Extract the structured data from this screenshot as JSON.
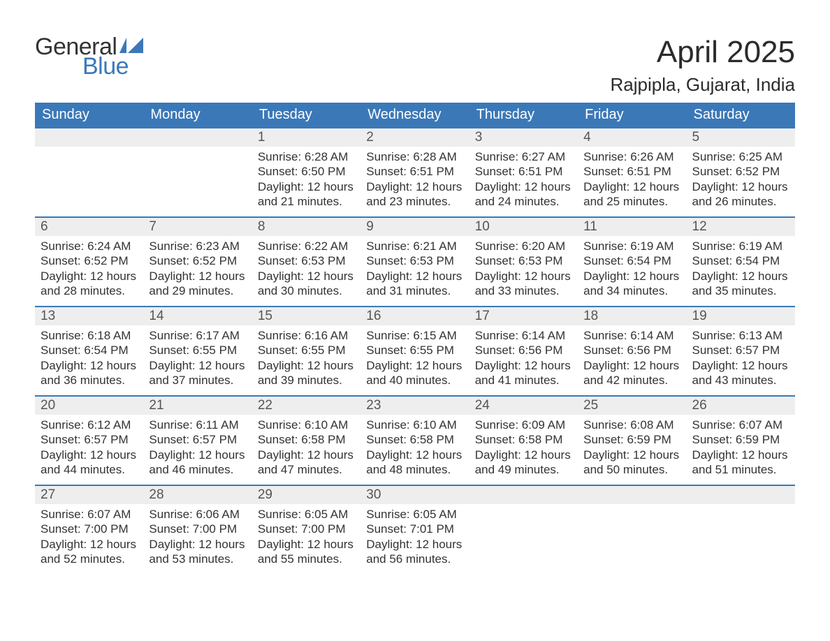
{
  "brand": {
    "general": "General",
    "blue": "Blue",
    "accent_color": "#3b78b8"
  },
  "header": {
    "month_title": "April 2025",
    "location": "Rajpipla, Gujarat, India"
  },
  "day_headers": [
    "Sunday",
    "Monday",
    "Tuesday",
    "Wednesday",
    "Thursday",
    "Friday",
    "Saturday"
  ],
  "labels": {
    "sunrise": "Sunrise:",
    "sunset": "Sunset:",
    "daylight_prefix": "Daylight:",
    "daylight_hours_word": "hours",
    "daylight_and_word": "and",
    "daylight_minutes_word": "minutes."
  },
  "colors": {
    "header_bg": "#3b78b8",
    "header_text": "#ffffff",
    "daynum_bg": "#eeeeee",
    "daynum_border": "#3b78b8",
    "body_text": "#333333",
    "page_bg": "#ffffff"
  },
  "weeks": [
    [
      null,
      null,
      {
        "n": "1",
        "sunrise": "6:28 AM",
        "sunset": "6:50 PM",
        "dl_h": "12",
        "dl_m": "21"
      },
      {
        "n": "2",
        "sunrise": "6:28 AM",
        "sunset": "6:51 PM",
        "dl_h": "12",
        "dl_m": "23"
      },
      {
        "n": "3",
        "sunrise": "6:27 AM",
        "sunset": "6:51 PM",
        "dl_h": "12",
        "dl_m": "24"
      },
      {
        "n": "4",
        "sunrise": "6:26 AM",
        "sunset": "6:51 PM",
        "dl_h": "12",
        "dl_m": "25"
      },
      {
        "n": "5",
        "sunrise": "6:25 AM",
        "sunset": "6:52 PM",
        "dl_h": "12",
        "dl_m": "26"
      }
    ],
    [
      {
        "n": "6",
        "sunrise": "6:24 AM",
        "sunset": "6:52 PM",
        "dl_h": "12",
        "dl_m": "28"
      },
      {
        "n": "7",
        "sunrise": "6:23 AM",
        "sunset": "6:52 PM",
        "dl_h": "12",
        "dl_m": "29"
      },
      {
        "n": "8",
        "sunrise": "6:22 AM",
        "sunset": "6:53 PM",
        "dl_h": "12",
        "dl_m": "30"
      },
      {
        "n": "9",
        "sunrise": "6:21 AM",
        "sunset": "6:53 PM",
        "dl_h": "12",
        "dl_m": "31"
      },
      {
        "n": "10",
        "sunrise": "6:20 AM",
        "sunset": "6:53 PM",
        "dl_h": "12",
        "dl_m": "33"
      },
      {
        "n": "11",
        "sunrise": "6:19 AM",
        "sunset": "6:54 PM",
        "dl_h": "12",
        "dl_m": "34"
      },
      {
        "n": "12",
        "sunrise": "6:19 AM",
        "sunset": "6:54 PM",
        "dl_h": "12",
        "dl_m": "35"
      }
    ],
    [
      {
        "n": "13",
        "sunrise": "6:18 AM",
        "sunset": "6:54 PM",
        "dl_h": "12",
        "dl_m": "36"
      },
      {
        "n": "14",
        "sunrise": "6:17 AM",
        "sunset": "6:55 PM",
        "dl_h": "12",
        "dl_m": "37"
      },
      {
        "n": "15",
        "sunrise": "6:16 AM",
        "sunset": "6:55 PM",
        "dl_h": "12",
        "dl_m": "39"
      },
      {
        "n": "16",
        "sunrise": "6:15 AM",
        "sunset": "6:55 PM",
        "dl_h": "12",
        "dl_m": "40"
      },
      {
        "n": "17",
        "sunrise": "6:14 AM",
        "sunset": "6:56 PM",
        "dl_h": "12",
        "dl_m": "41"
      },
      {
        "n": "18",
        "sunrise": "6:14 AM",
        "sunset": "6:56 PM",
        "dl_h": "12",
        "dl_m": "42"
      },
      {
        "n": "19",
        "sunrise": "6:13 AM",
        "sunset": "6:57 PM",
        "dl_h": "12",
        "dl_m": "43"
      }
    ],
    [
      {
        "n": "20",
        "sunrise": "6:12 AM",
        "sunset": "6:57 PM",
        "dl_h": "12",
        "dl_m": "44"
      },
      {
        "n": "21",
        "sunrise": "6:11 AM",
        "sunset": "6:57 PM",
        "dl_h": "12",
        "dl_m": "46"
      },
      {
        "n": "22",
        "sunrise": "6:10 AM",
        "sunset": "6:58 PM",
        "dl_h": "12",
        "dl_m": "47"
      },
      {
        "n": "23",
        "sunrise": "6:10 AM",
        "sunset": "6:58 PM",
        "dl_h": "12",
        "dl_m": "48"
      },
      {
        "n": "24",
        "sunrise": "6:09 AM",
        "sunset": "6:58 PM",
        "dl_h": "12",
        "dl_m": "49"
      },
      {
        "n": "25",
        "sunrise": "6:08 AM",
        "sunset": "6:59 PM",
        "dl_h": "12",
        "dl_m": "50"
      },
      {
        "n": "26",
        "sunrise": "6:07 AM",
        "sunset": "6:59 PM",
        "dl_h": "12",
        "dl_m": "51"
      }
    ],
    [
      {
        "n": "27",
        "sunrise": "6:07 AM",
        "sunset": "7:00 PM",
        "dl_h": "12",
        "dl_m": "52"
      },
      {
        "n": "28",
        "sunrise": "6:06 AM",
        "sunset": "7:00 PM",
        "dl_h": "12",
        "dl_m": "53"
      },
      {
        "n": "29",
        "sunrise": "6:05 AM",
        "sunset": "7:00 PM",
        "dl_h": "12",
        "dl_m": "55"
      },
      {
        "n": "30",
        "sunrise": "6:05 AM",
        "sunset": "7:01 PM",
        "dl_h": "12",
        "dl_m": "56"
      },
      null,
      null,
      null
    ]
  ]
}
